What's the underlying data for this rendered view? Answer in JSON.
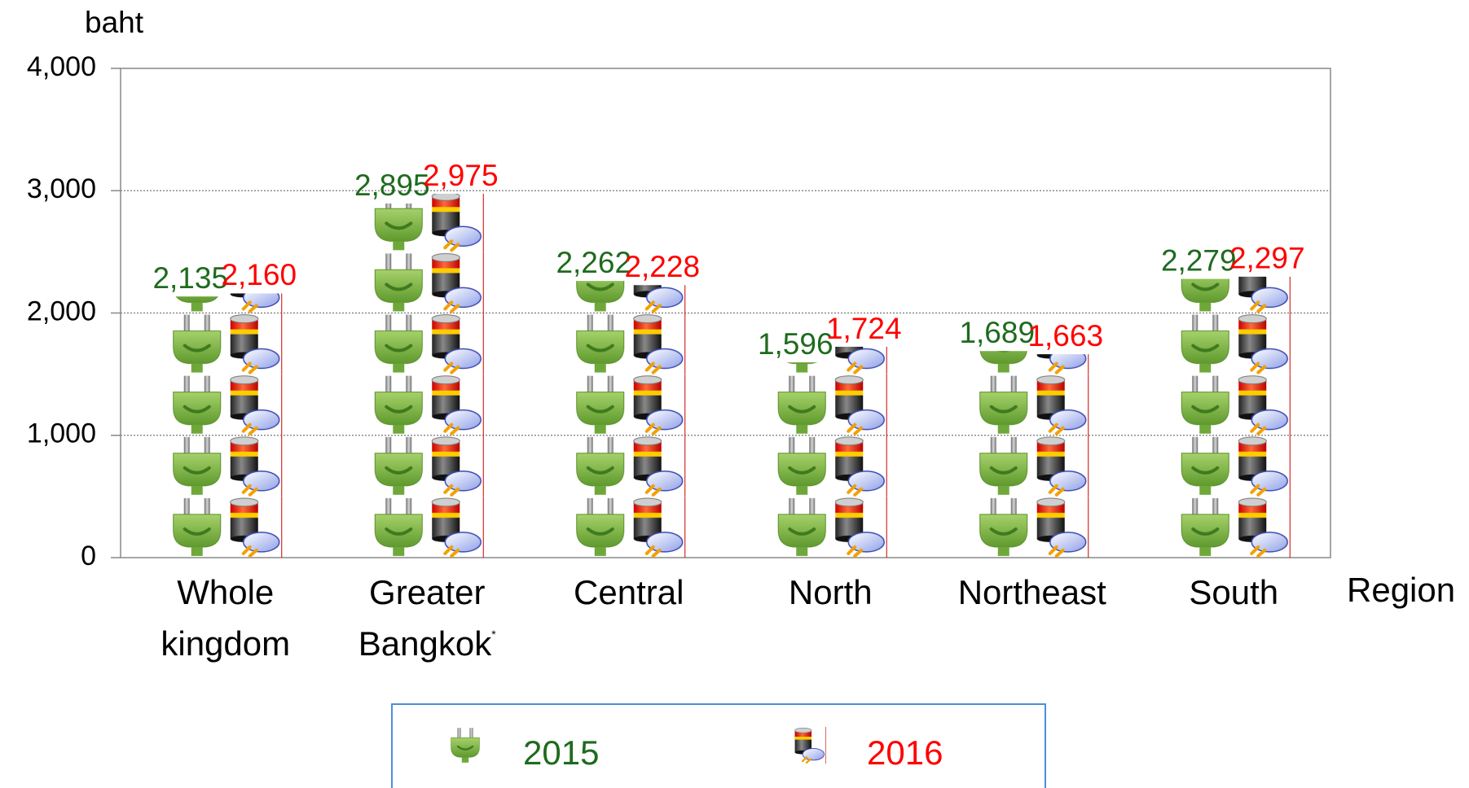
{
  "chart_data": {
    "type": "pictograph",
    "y_label": "baht",
    "x_label": "Region",
    "categories": [
      "Whole kingdom",
      "Greater Bangkok*",
      "Central",
      "North",
      "Northeast",
      "South"
    ],
    "series": [
      {
        "name": "2015",
        "color": "#1e6b1e",
        "values": [
          2135,
          2895,
          2262,
          1596,
          1689,
          2279
        ],
        "value_labels": [
          "2,135",
          "2,895",
          "2,262",
          "1,596",
          "1,689",
          "2,279"
        ]
      },
      {
        "name": "2016",
        "color": "#ff0000",
        "values": [
          2160,
          2975,
          2228,
          1724,
          1663,
          2297
        ],
        "value_labels": [
          "2,160",
          "2,975",
          "2,228",
          "1,724",
          "1,663",
          "2,297"
        ]
      }
    ],
    "ylim": [
      0,
      4000
    ],
    "yticks": [
      0,
      {
        "value": 1000,
        "label": "1,000"
      },
      {
        "value": 2000,
        "label": "2,000"
      },
      {
        "value": 3000,
        "label": "3,000"
      },
      {
        "value": 4000,
        "label": "4,000"
      }
    ],
    "grid": true
  }
}
